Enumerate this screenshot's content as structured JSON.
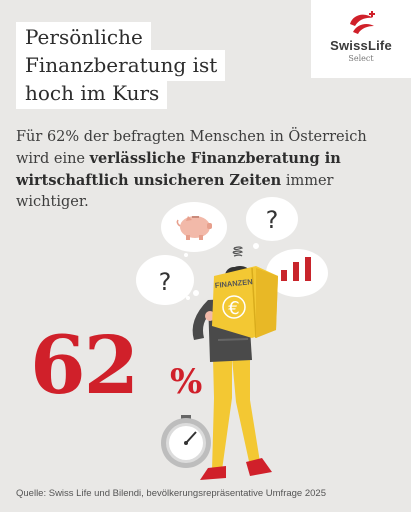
{
  "title": {
    "line1": "Persönliche",
    "line2": "Finanzberatung ist",
    "line3": "hoch im Kurs"
  },
  "logo": {
    "name": "SwissLife",
    "sub": "Select"
  },
  "intro": {
    "part1": "Für 62% der befragten Menschen in Österreich wird eine ",
    "bold": "verlässliche Finanzberatung in wirtschaftlich unsicheren Zeiten",
    "part2": " immer wichtiger."
  },
  "stat": {
    "number": "62",
    "percent_sign": "%"
  },
  "illustration": {
    "book_label": "FINANZEN",
    "currency_symbol": "€",
    "question_mark": "?"
  },
  "source": "Quelle: Swiss Life und Bilendi, bevölkerungsrepräsentative Umfrage 2025",
  "colors": {
    "background": "#e9e8e6",
    "accent_red": "#d0202a",
    "book_yellow": "#f3c833",
    "piggy_pink": "#f2b9a9"
  }
}
